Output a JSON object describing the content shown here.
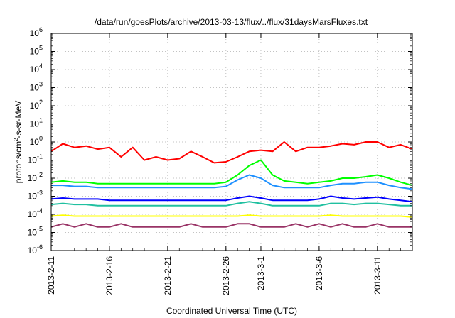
{
  "chart_data": {
    "type": "line",
    "title": "/data/run/goesPlots/archive/2013-03-13/flux/../flux/31daysMarsFluxes.txt",
    "xlabel": "Coordinated Universal Time (UTC)",
    "ylabel": {
      "base": "protons/cm",
      "sup": "2",
      "rest": "-s-sr-MeV"
    },
    "x_range": [
      "2013-02-11",
      "2013-03-14"
    ],
    "y_scale": "log",
    "ylim": [
      1e-06,
      1000000.0
    ],
    "grid": true,
    "legend": "none",
    "x_ticks": [
      {
        "date": "2013-02-11",
        "label": "2013-2-11"
      },
      {
        "date": "2013-02-16",
        "label": "2013-2-16"
      },
      {
        "date": "2013-02-21",
        "label": "2013-2-21"
      },
      {
        "date": "2013-02-26",
        "label": "2013-2-26"
      },
      {
        "date": "2013-03-01",
        "label": "2013-3-1"
      },
      {
        "date": "2013-03-06",
        "label": "2013-3-6"
      },
      {
        "date": "2013-03-11",
        "label": "2013-3-11"
      }
    ],
    "y_ticks": [
      {
        "value": 1e-06,
        "base": "10",
        "exp": "-6"
      },
      {
        "value": 1e-05,
        "base": "10",
        "exp": "-5"
      },
      {
        "value": 0.0001,
        "base": "10",
        "exp": "-4"
      },
      {
        "value": 0.001,
        "base": "10",
        "exp": "-3"
      },
      {
        "value": 0.01,
        "base": "10",
        "exp": "-2"
      },
      {
        "value": 0.1,
        "base": "10",
        "exp": "-1"
      },
      {
        "value": 1.0,
        "base": "10",
        "exp": "0"
      },
      {
        "value": 10.0,
        "base": "10",
        "exp": "1"
      },
      {
        "value": 100.0,
        "base": "10",
        "exp": "2"
      },
      {
        "value": 1000.0,
        "base": "10",
        "exp": "3"
      },
      {
        "value": 10000.0,
        "base": "10",
        "exp": "4"
      },
      {
        "value": 100000.0,
        "base": "10",
        "exp": "5"
      },
      {
        "value": 1000000.0,
        "base": "10",
        "exp": "6"
      }
    ],
    "series": [
      {
        "color": "#ff0000",
        "x": [
          "2013-02-11",
          "2013-02-12",
          "2013-02-13",
          "2013-02-14",
          "2013-02-15",
          "2013-02-16",
          "2013-02-17",
          "2013-02-18",
          "2013-02-19",
          "2013-02-20",
          "2013-02-21",
          "2013-02-22",
          "2013-02-23",
          "2013-02-24",
          "2013-02-25",
          "2013-02-26",
          "2013-02-27",
          "2013-02-28",
          "2013-03-01",
          "2013-03-02",
          "2013-03-03",
          "2013-03-04",
          "2013-03-05",
          "2013-03-06",
          "2013-03-07",
          "2013-03-08",
          "2013-03-09",
          "2013-03-10",
          "2013-03-11",
          "2013-03-12",
          "2013-03-13",
          "2013-03-14"
        ],
        "y": [
          0.3,
          0.8,
          0.5,
          0.6,
          0.4,
          0.5,
          0.15,
          0.5,
          0.1,
          0.15,
          0.1,
          0.12,
          0.3,
          0.15,
          0.07,
          0.08,
          0.15,
          0.3,
          0.35,
          0.3,
          1.0,
          0.3,
          0.5,
          0.5,
          0.6,
          0.8,
          0.7,
          1.0,
          1.0,
          0.5,
          0.7,
          0.4
        ]
      },
      {
        "color": "#00ff00",
        "x": [
          "2013-02-11",
          "2013-02-12",
          "2013-02-13",
          "2013-02-14",
          "2013-02-15",
          "2013-02-16",
          "2013-02-17",
          "2013-02-18",
          "2013-02-19",
          "2013-02-20",
          "2013-02-21",
          "2013-02-22",
          "2013-02-23",
          "2013-02-24",
          "2013-02-25",
          "2013-02-26",
          "2013-02-27",
          "2013-02-28",
          "2013-03-01",
          "2013-03-02",
          "2013-03-03",
          "2013-03-04",
          "2013-03-05",
          "2013-03-06",
          "2013-03-07",
          "2013-03-08",
          "2013-03-09",
          "2013-03-10",
          "2013-03-11",
          "2013-03-12",
          "2013-03-13",
          "2013-03-14"
        ],
        "y": [
          0.006,
          0.007,
          0.006,
          0.006,
          0.005,
          0.005,
          0.005,
          0.005,
          0.005,
          0.005,
          0.005,
          0.005,
          0.005,
          0.005,
          0.005,
          0.006,
          0.015,
          0.05,
          0.1,
          0.015,
          0.007,
          0.006,
          0.005,
          0.006,
          0.007,
          0.01,
          0.01,
          0.012,
          0.015,
          0.01,
          0.006,
          0.004
        ]
      },
      {
        "color": "#1e90ff",
        "x": [
          "2013-02-11",
          "2013-02-12",
          "2013-02-13",
          "2013-02-14",
          "2013-02-15",
          "2013-02-16",
          "2013-02-17",
          "2013-02-18",
          "2013-02-19",
          "2013-02-20",
          "2013-02-21",
          "2013-02-22",
          "2013-02-23",
          "2013-02-24",
          "2013-02-25",
          "2013-02-26",
          "2013-02-27",
          "2013-02-28",
          "2013-03-01",
          "2013-03-02",
          "2013-03-03",
          "2013-03-04",
          "2013-03-05",
          "2013-03-06",
          "2013-03-07",
          "2013-03-08",
          "2013-03-09",
          "2013-03-10",
          "2013-03-11",
          "2013-03-12",
          "2013-03-13",
          "2013-03-14"
        ],
        "y": [
          0.004,
          0.004,
          0.0035,
          0.0035,
          0.003,
          0.003,
          0.003,
          0.003,
          0.003,
          0.003,
          0.003,
          0.003,
          0.003,
          0.003,
          0.003,
          0.0035,
          0.008,
          0.015,
          0.01,
          0.004,
          0.003,
          0.003,
          0.003,
          0.003,
          0.004,
          0.005,
          0.005,
          0.006,
          0.006,
          0.004,
          0.003,
          0.0025
        ]
      },
      {
        "color": "#0000ff",
        "x": [
          "2013-02-11",
          "2013-02-12",
          "2013-02-13",
          "2013-02-14",
          "2013-02-15",
          "2013-02-16",
          "2013-02-17",
          "2013-02-18",
          "2013-02-19",
          "2013-02-20",
          "2013-02-21",
          "2013-02-22",
          "2013-02-23",
          "2013-02-24",
          "2013-02-25",
          "2013-02-26",
          "2013-02-27",
          "2013-02-28",
          "2013-03-01",
          "2013-03-02",
          "2013-03-03",
          "2013-03-04",
          "2013-03-05",
          "2013-03-06",
          "2013-03-07",
          "2013-03-08",
          "2013-03-09",
          "2013-03-10",
          "2013-03-11",
          "2013-03-12",
          "2013-03-13",
          "2013-03-14"
        ],
        "y": [
          0.0007,
          0.0008,
          0.0007,
          0.0007,
          0.0007,
          0.0006,
          0.0006,
          0.0006,
          0.0006,
          0.0006,
          0.0006,
          0.0006,
          0.0006,
          0.0006,
          0.0006,
          0.0006,
          0.0008,
          0.001,
          0.0008,
          0.0006,
          0.0006,
          0.0006,
          0.0006,
          0.0007,
          0.001,
          0.0008,
          0.0007,
          0.0008,
          0.0009,
          0.0007,
          0.0006,
          0.0005
        ]
      },
      {
        "color": "#20c0a0",
        "x": [
          "2013-02-11",
          "2013-02-12",
          "2013-02-13",
          "2013-02-14",
          "2013-02-15",
          "2013-02-16",
          "2013-02-17",
          "2013-02-18",
          "2013-02-19",
          "2013-02-20",
          "2013-02-21",
          "2013-02-22",
          "2013-02-23",
          "2013-02-24",
          "2013-02-25",
          "2013-02-26",
          "2013-02-27",
          "2013-02-28",
          "2013-03-01",
          "2013-03-02",
          "2013-03-03",
          "2013-03-04",
          "2013-03-05",
          "2013-03-06",
          "2013-03-07",
          "2013-03-08",
          "2013-03-09",
          "2013-03-10",
          "2013-03-11",
          "2013-03-12",
          "2013-03-13",
          "2013-03-14"
        ],
        "y": [
          0.00035,
          0.0004,
          0.00035,
          0.00035,
          0.0003,
          0.0003,
          0.0003,
          0.0003,
          0.0003,
          0.0003,
          0.0003,
          0.0003,
          0.0003,
          0.0003,
          0.0003,
          0.0003,
          0.0004,
          0.0005,
          0.0004,
          0.0003,
          0.0003,
          0.0003,
          0.0003,
          0.0003,
          0.0004,
          0.0004,
          0.00035,
          0.0004,
          0.0004,
          0.00035,
          0.0003,
          0.0003
        ]
      },
      {
        "color": "#ffff00",
        "x": [
          "2013-02-11",
          "2013-02-12",
          "2013-02-13",
          "2013-02-14",
          "2013-02-15",
          "2013-02-16",
          "2013-02-17",
          "2013-02-18",
          "2013-02-19",
          "2013-02-20",
          "2013-02-21",
          "2013-02-22",
          "2013-02-23",
          "2013-02-24",
          "2013-02-25",
          "2013-02-26",
          "2013-02-27",
          "2013-02-28",
          "2013-03-01",
          "2013-03-02",
          "2013-03-03",
          "2013-03-04",
          "2013-03-05",
          "2013-03-06",
          "2013-03-07",
          "2013-03-08",
          "2013-03-09",
          "2013-03-10",
          "2013-03-11",
          "2013-03-12",
          "2013-03-13",
          "2013-03-14"
        ],
        "y": [
          8e-05,
          9e-05,
          8e-05,
          8e-05,
          8e-05,
          8e-05,
          8e-05,
          8e-05,
          8e-05,
          8e-05,
          8e-05,
          8e-05,
          8e-05,
          8e-05,
          8e-05,
          8e-05,
          8e-05,
          9e-05,
          8e-05,
          8e-05,
          8e-05,
          8e-05,
          8e-05,
          8e-05,
          9e-05,
          8e-05,
          8e-05,
          8e-05,
          8e-05,
          8e-05,
          8e-05,
          7e-05
        ]
      },
      {
        "color": "#993366",
        "x": [
          "2013-02-11",
          "2013-02-12",
          "2013-02-13",
          "2013-02-14",
          "2013-02-15",
          "2013-02-16",
          "2013-02-17",
          "2013-02-18",
          "2013-02-19",
          "2013-02-20",
          "2013-02-21",
          "2013-02-22",
          "2013-02-23",
          "2013-02-24",
          "2013-02-25",
          "2013-02-26",
          "2013-02-27",
          "2013-02-28",
          "2013-03-01",
          "2013-03-02",
          "2013-03-03",
          "2013-03-04",
          "2013-03-05",
          "2013-03-06",
          "2013-03-07",
          "2013-03-08",
          "2013-03-09",
          "2013-03-10",
          "2013-03-11",
          "2013-03-12",
          "2013-03-13",
          "2013-03-14"
        ],
        "y": [
          2e-05,
          3e-05,
          2e-05,
          3e-05,
          2e-05,
          2e-05,
          3e-05,
          2e-05,
          2e-05,
          2e-05,
          2e-05,
          2e-05,
          3e-05,
          2e-05,
          2e-05,
          2e-05,
          3e-05,
          3e-05,
          2e-05,
          2e-05,
          2e-05,
          3e-05,
          2e-05,
          3e-05,
          2e-05,
          3e-05,
          2e-05,
          2e-05,
          3e-05,
          2e-05,
          2e-05,
          2e-05
        ]
      }
    ]
  }
}
